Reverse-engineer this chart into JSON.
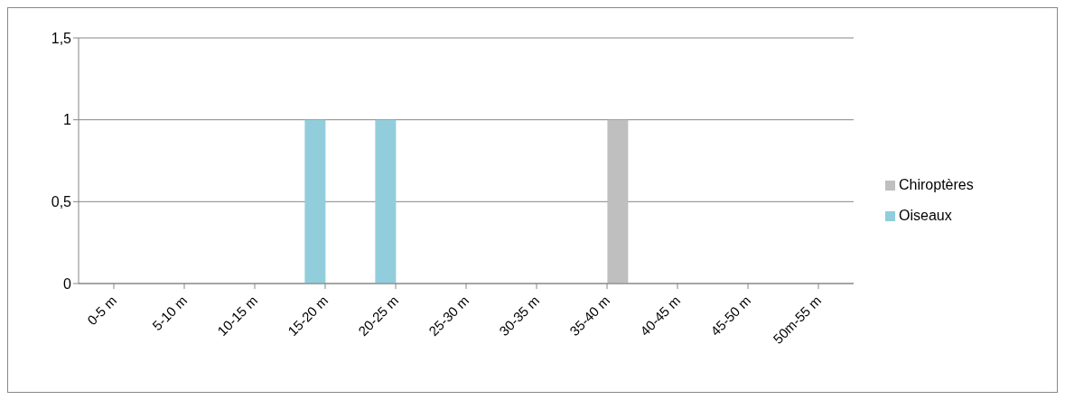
{
  "chart_data": {
    "type": "bar",
    "categories": [
      "0-5 m",
      "5-10 m",
      "10-15 m",
      "15-20 m",
      "20-25 m",
      "25-30 m",
      "30-35 m",
      "35-40 m",
      "40-45 m",
      "45-50 m",
      "50m-55 m"
    ],
    "series": [
      {
        "name": "Oiseaux",
        "color": "#92cddc",
        "values": [
          0,
          0,
          0,
          1,
          1,
          0,
          0,
          0,
          0,
          0,
          0
        ]
      },
      {
        "name": "Chiroptères",
        "color": "#bfbfbf",
        "values": [
          0,
          0,
          0,
          0,
          0,
          0,
          0,
          1,
          0,
          0,
          0
        ]
      }
    ],
    "ylim": [
      0,
      1.5
    ],
    "yticks": [
      {
        "value": 0,
        "label": "0"
      },
      {
        "value": 0.5,
        "label": "0,5"
      },
      {
        "value": 1,
        "label": "1"
      },
      {
        "value": 1.5,
        "label": "1,5"
      }
    ],
    "grid": "y",
    "legend": "right"
  }
}
